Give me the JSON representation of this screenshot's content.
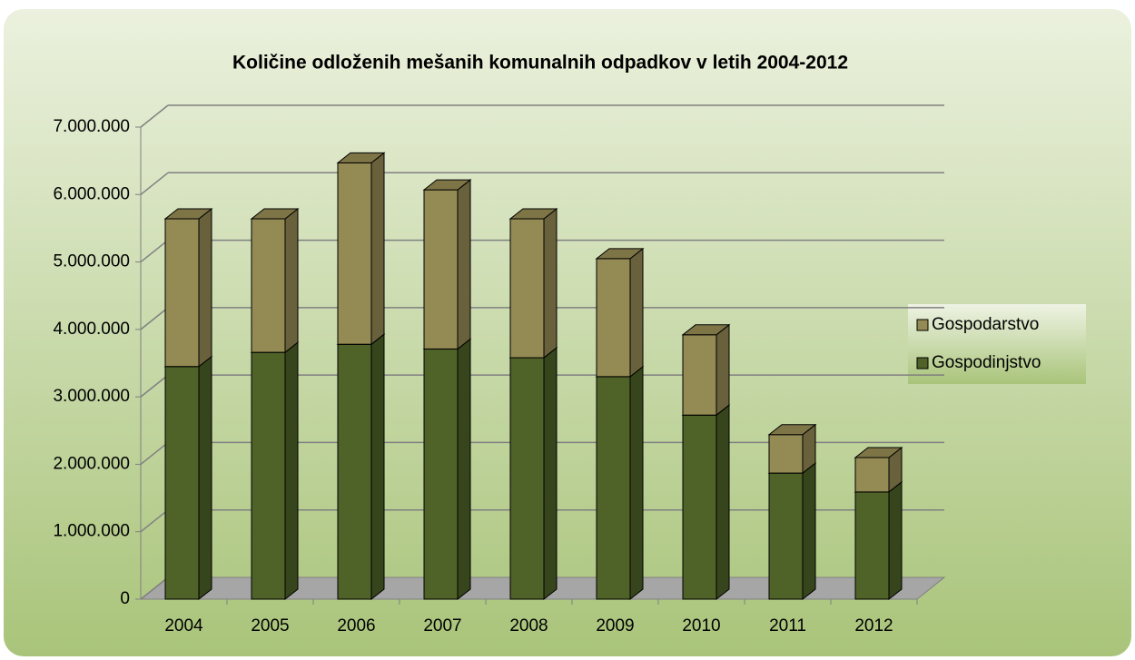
{
  "chart_data": {
    "type": "stacked-bar-3d",
    "title": "Količine odloženih mešanih komunalnih odpadkov v letih 2004-2012",
    "categories": [
      "2004",
      "2005",
      "2006",
      "2007",
      "2008",
      "2009",
      "2010",
      "2011",
      "2012"
    ],
    "series": [
      {
        "name": "Gospodinjstvo",
        "color": "#4f6228",
        "values": [
          3450000,
          3660000,
          3780000,
          3710000,
          3580000,
          3300000,
          2730000,
          1870000,
          1590000
        ]
      },
      {
        "name": "Gospodarstvo",
        "color": "#948a54",
        "values": [
          2190000,
          1980000,
          2690000,
          2360000,
          2060000,
          1750000,
          1190000,
          570000,
          510000
        ]
      }
    ],
    "ylim": [
      0,
      7000000
    ],
    "yticks": [
      0,
      {
        "value": 1000000,
        "label": "1.000.000"
      },
      {
        "value": 2000000,
        "label": "2.000.000"
      },
      {
        "value": 3000000,
        "label": "3.000.000"
      },
      {
        "value": 4000000,
        "label": "4.000.000"
      },
      {
        "value": 5000000,
        "label": "5.000.000"
      },
      {
        "value": 6000000,
        "label": "6.000.000"
      },
      {
        "value": 7000000,
        "label": "7.000.000"
      }
    ],
    "grid": true,
    "legend": "right"
  }
}
